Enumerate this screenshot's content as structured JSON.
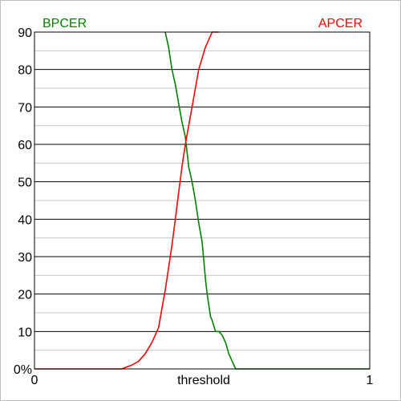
{
  "chart_data": {
    "type": "line",
    "title": "",
    "xlabel": "threshold",
    "ylabel": "",
    "xlim": [
      0,
      1
    ],
    "ylim": [
      0,
      90
    ],
    "y_ticks": [
      0,
      10,
      20,
      30,
      40,
      50,
      60,
      70,
      80,
      90
    ],
    "y_tick_labels": [
      "0%",
      "10",
      "20",
      "30",
      "40",
      "50",
      "60",
      "70",
      "80",
      "90"
    ],
    "x_ticks": [
      0,
      1
    ],
    "x_tick_labels": [
      "0",
      "1"
    ],
    "grid": true,
    "series": [
      {
        "name": "BPCER",
        "color": "#008000",
        "legend_position": "top-left",
        "x": [
          0.39,
          0.4,
          0.41,
          0.42,
          0.43,
          0.44,
          0.45,
          0.455,
          0.46,
          0.47,
          0.48,
          0.49,
          0.5,
          0.505,
          0.51,
          0.515,
          0.52,
          0.525,
          0.53,
          0.54,
          0.55,
          0.56,
          0.57,
          0.58,
          0.59,
          0.6,
          0.61,
          1.0
        ],
        "y": [
          90,
          86,
          80,
          76,
          71,
          66,
          62,
          58,
          54,
          50,
          45,
          39,
          34,
          29,
          24,
          20,
          17,
          14,
          13,
          10,
          10,
          9,
          7,
          4,
          2,
          0,
          0,
          0
        ]
      },
      {
        "name": "APCER",
        "color": "#ff0000",
        "legend_position": "top-right",
        "x": [
          0.0,
          0.26,
          0.29,
          0.31,
          0.33,
          0.35,
          0.37,
          0.38,
          0.39,
          0.4,
          0.41,
          0.42,
          0.43,
          0.44,
          0.45,
          0.46,
          0.47,
          0.48,
          0.49,
          0.5,
          0.51,
          0.52,
          0.53,
          0.54,
          0.55
        ],
        "y": [
          0,
          0,
          1,
          2,
          4,
          7,
          11,
          16,
          21,
          27,
          33,
          40,
          47,
          54,
          60,
          65,
          70,
          75,
          80,
          83,
          86,
          88,
          90,
          90,
          90
        ]
      }
    ]
  }
}
